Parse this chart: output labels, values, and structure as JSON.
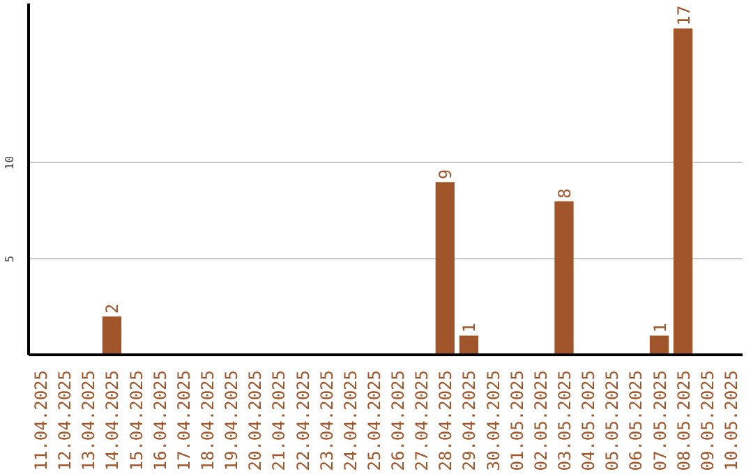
{
  "chart_data": {
    "type": "bar",
    "categories": [
      "11.04.2025",
      "12.04.2025",
      "13.04.2025",
      "14.04.2025",
      "15.04.2025",
      "16.04.2025",
      "17.04.2025",
      "18.04.2025",
      "19.04.2025",
      "20.04.2025",
      "21.04.2025",
      "22.04.2025",
      "23.04.2025",
      "24.04.2025",
      "25.04.2025",
      "26.04.2025",
      "27.04.2025",
      "28.04.2025",
      "29.04.2025",
      "30.04.2025",
      "01.05.2025",
      "02.05.2025",
      "03.05.2025",
      "04.05.2025",
      "05.05.2025",
      "06.05.2025",
      "07.05.2025",
      "08.05.2025",
      "09.05.2025",
      "10.05.2025"
    ],
    "values": [
      0,
      0,
      0,
      2,
      0,
      0,
      0,
      0,
      0,
      0,
      0,
      0,
      0,
      0,
      0,
      0,
      0,
      9,
      1,
      0,
      0,
      0,
      8,
      0,
      0,
      0,
      1,
      17,
      0,
      0
    ],
    "value_labels": [
      null,
      null,
      null,
      "2",
      null,
      null,
      null,
      null,
      null,
      null,
      null,
      null,
      null,
      null,
      null,
      null,
      null,
      "9",
      "1",
      null,
      null,
      null,
      "8",
      null,
      null,
      null,
      "1",
      "17",
      null,
      null
    ],
    "color": "#a0562a",
    "ylim": [
      0,
      18.3
    ],
    "yticks": [
      5,
      10
    ],
    "grid": "y"
  }
}
